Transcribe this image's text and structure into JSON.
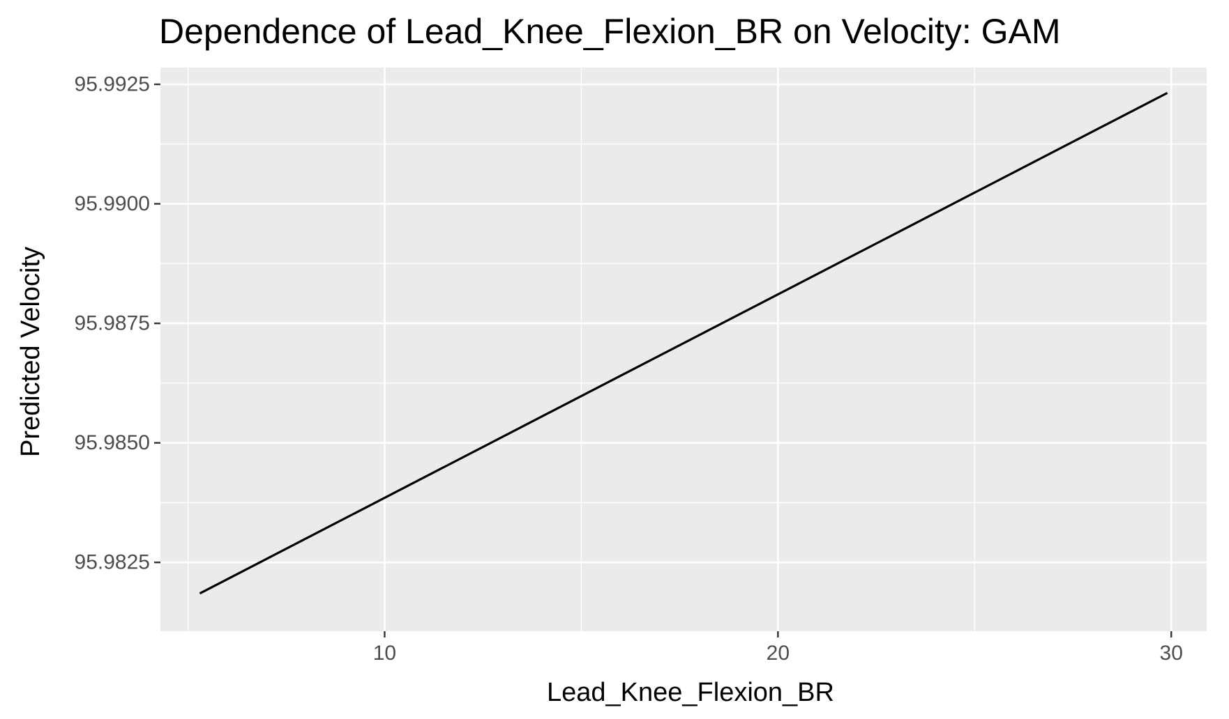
{
  "chart_data": {
    "type": "line",
    "title": "Dependence of Lead_Knee_Flexion_BR on Velocity: GAM",
    "xlabel": "Lead_Knee_Flexion_BR",
    "ylabel": "Predicted Velocity",
    "xlim": [
      4.3,
      30.9
    ],
    "ylim": [
      95.98106,
      95.99285
    ],
    "x_ticks": [
      10,
      20,
      30
    ],
    "x_tick_labels": [
      "10",
      "20",
      "30"
    ],
    "x_minor_ticks": [
      5,
      15,
      25
    ],
    "y_ticks": [
      95.9825,
      95.985,
      95.9875,
      95.99,
      95.9925
    ],
    "y_tick_labels": [
      "95.9825",
      "95.9850",
      "95.9875",
      "95.9900",
      "95.9925"
    ],
    "y_minor_ticks": [
      95.98375,
      95.98625,
      95.98875,
      95.99125
    ],
    "grid": true,
    "legend": "none",
    "colors": {
      "panel_background": "#ebebeb",
      "grid": "#ffffff",
      "line": "#000000",
      "tick_text": "#4d4d4d",
      "tick_mark": "#333333"
    },
    "series": [
      {
        "x": [
          5.3,
          29.9
        ],
        "values": [
          95.98185,
          95.99232
        ]
      }
    ]
  }
}
